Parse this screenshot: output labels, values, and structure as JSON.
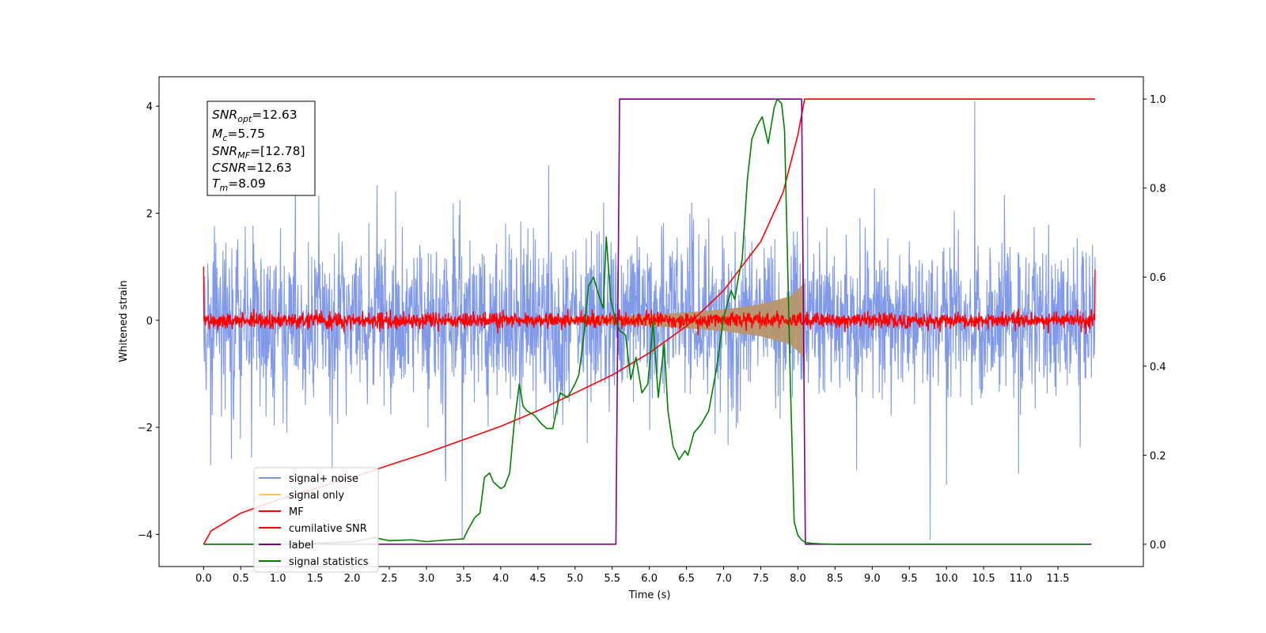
{
  "chart_data": {
    "type": "line",
    "xlabel": "Time (s)",
    "ylabel": "Whitened strain",
    "xlim": [
      -0.6,
      12.65
    ],
    "ylim_left": [
      -4.6,
      4.55
    ],
    "ylim_right": [
      -0.05,
      1.05
    ],
    "xticks": [
      0.0,
      0.5,
      1.0,
      1.5,
      2.0,
      2.5,
      3.0,
      3.5,
      4.0,
      4.5,
      5.0,
      5.5,
      6.0,
      6.5,
      7.0,
      7.5,
      8.0,
      8.5,
      9.0,
      9.5,
      10.0,
      10.5,
      11.0,
      11.5
    ],
    "xtick_labels": [
      "0.0",
      "0.5",
      "1.0",
      "1.5",
      "2.0",
      "2.5",
      "3.0",
      "3.5",
      "4.0",
      "4.5",
      "5.0",
      "5.5",
      "6.0",
      "6.5",
      "7.0",
      "7.5",
      "8.0",
      "8.5",
      "9.0",
      "9.5",
      "10.0",
      "10.5",
      "11.0",
      "11.5"
    ],
    "yticks_left": [
      4,
      2,
      0,
      -2,
      -4
    ],
    "ytick_labels_left": [
      "4",
      "2",
      "0",
      "−2",
      "−4"
    ],
    "yticks_right": [
      1.0,
      0.8,
      0.6,
      0.4,
      0.2,
      0.0
    ],
    "ytick_labels_right": [
      "1.0",
      "0.8",
      "0.6",
      "0.4",
      "0.2",
      "0.0"
    ],
    "legend_position": "lower-left",
    "grid": false,
    "info_box": {
      "snr_opt": "=12.63",
      "mc": "=5.75",
      "snr_mf": "=[12.78]",
      "csnr": "=12.63",
      "tm": "=8.09"
    },
    "series": [
      {
        "name": "signal+ noise",
        "axis": "left",
        "color": "#7993e8",
        "style": "noise band",
        "x_range": [
          0.0,
          12.0
        ],
        "typical_amplitude": 1.35,
        "max_value": 4.1,
        "min_value": -4.1
      },
      {
        "name": "signal only",
        "axis": "left",
        "color": "#ffc266",
        "style": "chirp envelope",
        "x_range": [
          4.0,
          8.09
        ],
        "envelope": [
          [
            4.0,
            0.02
          ],
          [
            5.0,
            0.05
          ],
          [
            6.0,
            0.1
          ],
          [
            7.0,
            0.2
          ],
          [
            7.5,
            0.3
          ],
          [
            7.9,
            0.45
          ],
          [
            8.05,
            0.65
          ],
          [
            8.09,
            0.7
          ]
        ]
      },
      {
        "name": "MF",
        "axis": "left",
        "color": "#ff0000",
        "style": "noise band",
        "x_range": [
          0.0,
          12.0
        ],
        "typical_amplitude": 0.12,
        "start_value": 1.0,
        "end_value": 0.95
      },
      {
        "name": "cumilative SNR",
        "axis": "right",
        "color": "#ff0000",
        "x": [
          0.0,
          0.1,
          0.5,
          1.0,
          1.5,
          2.0,
          2.5,
          3.0,
          3.5,
          4.0,
          4.5,
          5.0,
          5.5,
          6.0,
          6.5,
          7.0,
          7.5,
          7.8,
          8.0,
          8.09,
          12.0
        ],
        "values": [
          0.0,
          0.03,
          0.07,
          0.1,
          0.125,
          0.15,
          0.178,
          0.205,
          0.235,
          0.265,
          0.3,
          0.34,
          0.38,
          0.43,
          0.49,
          0.57,
          0.68,
          0.79,
          0.92,
          1.0,
          1.0
        ]
      },
      {
        "name": "label",
        "axis": "right",
        "color": "#800080",
        "x": [
          0.0,
          5.55,
          5.6,
          8.05,
          8.1,
          11.95
        ],
        "values": [
          0.0,
          0.0,
          1.0,
          1.0,
          0.0,
          0.0
        ]
      },
      {
        "name": "signal statistics",
        "axis": "right",
        "color": "#008000",
        "x": [
          0.0,
          1.0,
          2.0,
          2.3,
          2.5,
          2.8,
          3.0,
          3.3,
          3.5,
          3.55,
          3.65,
          3.72,
          3.78,
          3.85,
          3.9,
          4.0,
          4.05,
          4.12,
          4.18,
          4.25,
          4.3,
          4.35,
          4.45,
          4.55,
          4.62,
          4.7,
          4.8,
          4.9,
          5.0,
          5.05,
          5.12,
          5.18,
          5.25,
          5.3,
          5.38,
          5.42,
          5.48,
          5.55,
          5.6,
          5.68,
          5.75,
          5.82,
          5.9,
          5.98,
          6.05,
          6.12,
          6.2,
          6.25,
          6.32,
          6.4,
          6.48,
          6.52,
          6.6,
          6.7,
          6.8,
          6.9,
          7.0,
          7.1,
          7.15,
          7.2,
          7.25,
          7.32,
          7.38,
          7.45,
          7.52,
          7.6,
          7.68,
          7.72,
          7.78,
          7.82,
          7.9,
          7.95,
          8.0,
          8.05,
          8.1,
          8.2,
          8.3,
          8.5,
          9.0,
          10.0,
          11.0,
          11.9
        ],
        "values": [
          0.0,
          0.0,
          0.005,
          0.015,
          0.008,
          0.01,
          0.006,
          0.01,
          0.012,
          0.03,
          0.06,
          0.07,
          0.15,
          0.16,
          0.14,
          0.125,
          0.13,
          0.16,
          0.27,
          0.36,
          0.31,
          0.3,
          0.29,
          0.27,
          0.26,
          0.26,
          0.34,
          0.33,
          0.36,
          0.38,
          0.47,
          0.58,
          0.6,
          0.57,
          0.53,
          0.69,
          0.55,
          0.5,
          0.48,
          0.47,
          0.37,
          0.42,
          0.34,
          0.36,
          0.5,
          0.33,
          0.45,
          0.3,
          0.22,
          0.19,
          0.21,
          0.2,
          0.25,
          0.27,
          0.3,
          0.39,
          0.51,
          0.57,
          0.55,
          0.6,
          0.64,
          0.82,
          0.91,
          0.94,
          0.96,
          0.9,
          0.98,
          1.0,
          0.99,
          0.93,
          0.35,
          0.05,
          0.02,
          0.01,
          0.004,
          0.002,
          0.001,
          0.0,
          0.0,
          0.0,
          0.0,
          0.0
        ]
      }
    ]
  }
}
